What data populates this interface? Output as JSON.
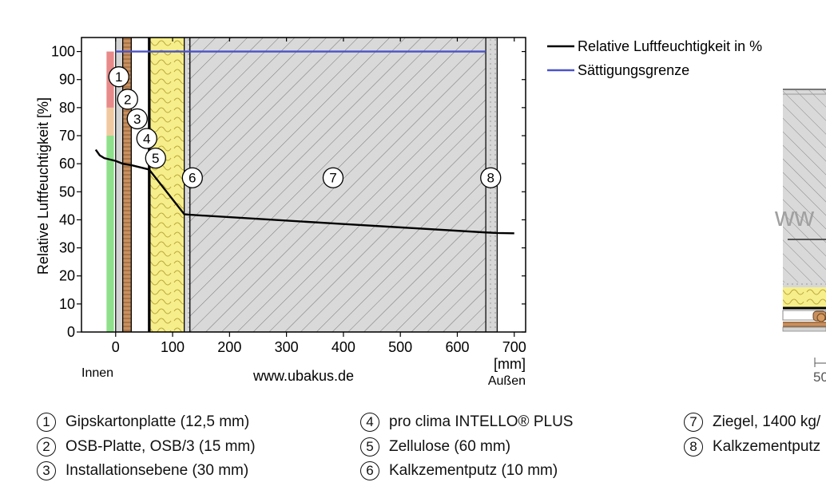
{
  "chart_data": {
    "type": "line",
    "ylabel": "Relative Luftfeuchtigkeit [%]",
    "xunit": "[mm]",
    "inside_label": "Innen",
    "outside_label": "Außen",
    "watermark": "www.ubakus.de",
    "xlim": [
      -60,
      720
    ],
    "ylim": [
      0,
      105
    ],
    "x_ticks": [
      0,
      100,
      200,
      300,
      400,
      500,
      600,
      700
    ],
    "y_ticks": [
      0,
      10,
      20,
      30,
      40,
      50,
      60,
      70,
      80,
      90,
      100
    ],
    "comfort_bands": [
      {
        "from": 0,
        "to": 70,
        "color": "#8ee08a"
      },
      {
        "from": 70,
        "to": 80,
        "color": "#f0c9a0"
      },
      {
        "from": 80,
        "to": 100,
        "color": "#e88a8a"
      }
    ],
    "layers": [
      {
        "id": "1",
        "x0": 0,
        "x1": 12.5,
        "type": "gypsum",
        "label_y": 91
      },
      {
        "id": "2",
        "x0": 12.5,
        "x1": 27.5,
        "type": "osb",
        "label_y": 83
      },
      {
        "id": "3",
        "x0": 27.5,
        "x1": 57.5,
        "type": "air",
        "label_y": 76
      },
      {
        "id": "4",
        "x0": 57.5,
        "x1": 60.5,
        "type": "membrane",
        "label_y": 69
      },
      {
        "id": "5",
        "x0": 60.5,
        "x1": 120.5,
        "type": "cellulose",
        "label_y": 62
      },
      {
        "id": "6",
        "x0": 120.5,
        "x1": 130.5,
        "type": "plaster",
        "label_y": 55
      },
      {
        "id": "7",
        "x0": 130.5,
        "x1": 650,
        "type": "brick",
        "label_y": 55
      },
      {
        "id": "8",
        "x0": 650,
        "x1": 670,
        "type": "plaster",
        "label_y": 55
      }
    ],
    "series": [
      {
        "name": "Relative Luftfeuchtigkeit in %",
        "color": "#000000",
        "x": [
          -35,
          -28,
          -20,
          -10,
          0,
          12.5,
          27.5,
          57.5,
          60.5,
          120.5,
          130.5,
          400,
          650,
          670,
          700
        ],
        "y": [
          65,
          63,
          62,
          61.5,
          61,
          60,
          59.5,
          58,
          57.5,
          42,
          41.8,
          38.5,
          35.5,
          35.3,
          35.2
        ]
      },
      {
        "name": "Sättigungsgrenze",
        "color": "#4a52c8",
        "x": [
          0,
          650
        ],
        "y": [
          100,
          100
        ]
      }
    ]
  },
  "layer_list": [
    {
      "num": "1",
      "text": "Gipskartonplatte (12,5 mm)"
    },
    {
      "num": "2",
      "text": "OSB-Platte, OSB/3 (15 mm)"
    },
    {
      "num": "3",
      "text": "Installationsebene (30 mm)"
    },
    {
      "num": "4",
      "text": "pro clima INTELLO® PLUS"
    },
    {
      "num": "5",
      "text": "Zellulose (60 mm)"
    },
    {
      "num": "6",
      "text": "Kalkzementputz (10 mm)"
    },
    {
      "num": "7",
      "text": "Ziegel, 1400 kg/"
    },
    {
      "num": "8",
      "text": "Kalkzementputz"
    }
  ],
  "right_drawing": {
    "watermark_fragment": "ww",
    "scale_fragment": "50"
  },
  "colors": {
    "gypsum": "#d4d4d4",
    "osb": "#c89060",
    "cellulose": "#f6ee8a",
    "brick": "#d9d9d9",
    "plaster": "#d7d7d7"
  }
}
